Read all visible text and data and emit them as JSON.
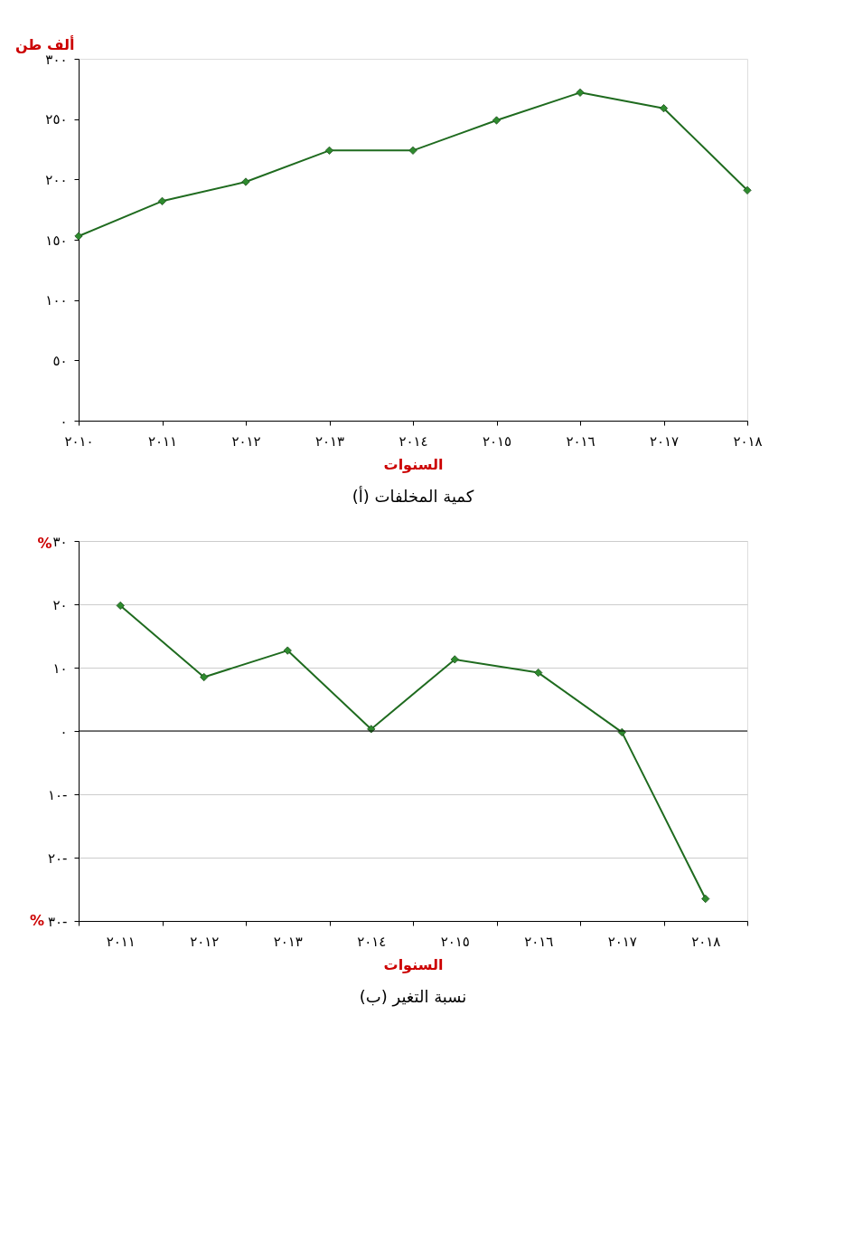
{
  "chart_data": [
    {
      "type": "line",
      "title": "(أ) كمية المخلفات",
      "xlabel": "السنوات",
      "ylabel": "ألف طن",
      "categories": [
        "٢٠١٠",
        "٢٠١١",
        "٢٠١٢",
        "٢٠١٣",
        "٢٠١٤",
        "٢٠١٥",
        "٢٠١٦",
        "٢٠١٧",
        "٢٠١٨"
      ],
      "series": [
        {
          "color": "#1f6b1f",
          "values": [
            153,
            182,
            198,
            224,
            224,
            249,
            272,
            259,
            191
          ]
        }
      ],
      "ylim": [
        0,
        300
      ],
      "yticks": [
        {
          "value": 0,
          "label": "٠"
        },
        {
          "value": 50,
          "label": "٥٠"
        },
        {
          "value": 100,
          "label": "١٠٠"
        },
        {
          "value": 150,
          "label": "١٥٠"
        },
        {
          "value": 200,
          "label": "٢٠٠"
        },
        {
          "value": 250,
          "label": "٢٥٠"
        },
        {
          "value": 300,
          "label": "٣٠٠"
        }
      ],
      "grid": false,
      "marker": "diamond",
      "line_style": "solid"
    },
    {
      "type": "line",
      "title": "(ب) نسبة التغير",
      "xlabel": "السنوات",
      "ylabel": "%",
      "annotations": [
        "%"
      ],
      "categories": [
        "٢٠١١",
        "٢٠١٢",
        "٢٠١٣",
        "٢٠١٤",
        "٢٠١٥",
        "٢٠١٦",
        "٢٠١٧",
        "٢٠١٨"
      ],
      "series": [
        {
          "color": "#1f6b1f",
          "values": [
            19.8,
            8.5,
            12.7,
            0.3,
            11.3,
            9.2,
            -0.2,
            -26.5
          ]
        }
      ],
      "ylim": [
        -30,
        30
      ],
      "yticks": [
        {
          "value": -30,
          "label": "٣٠-"
        },
        {
          "value": -20,
          "label": "٢٠-"
        },
        {
          "value": -10,
          "label": "١٠-"
        },
        {
          "value": 0,
          "label": "٠"
        },
        {
          "value": 10,
          "label": "١٠"
        },
        {
          "value": 20,
          "label": "٢٠"
        },
        {
          "value": 30,
          "label": "٣٠"
        }
      ],
      "ref_lines": [
        {
          "axis": "y",
          "value": 0,
          "color": "#000000"
        }
      ],
      "grid": "y",
      "marker": "diamond",
      "line_style": "solid"
    }
  ]
}
